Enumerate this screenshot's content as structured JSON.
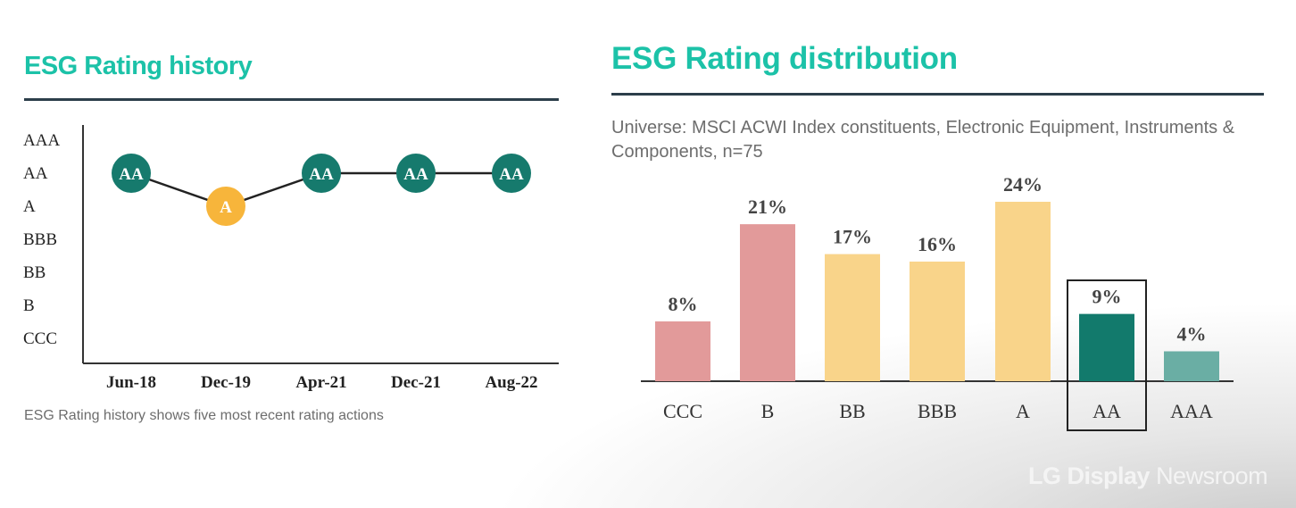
{
  "watermark": {
    "brand": "LG Display",
    "suffix": "Newsroom"
  },
  "chart_data": [
    {
      "type": "line",
      "title": "ESG Rating history",
      "note": "ESG Rating history shows five most recent rating actions",
      "y_categories": [
        "AAA",
        "AA",
        "A",
        "BBB",
        "BB",
        "B",
        "CCC"
      ],
      "x": [
        "Jun-18",
        "Dec-19",
        "Apr-21",
        "Dec-21",
        "Aug-22"
      ],
      "values": [
        "AA",
        "A",
        "AA",
        "AA",
        "AA"
      ],
      "colors": {
        "leader": "#167a6d",
        "average": "#f7b53b"
      }
    },
    {
      "type": "bar",
      "title": "ESG Rating distribution",
      "subtitle": "Universe: MSCI ACWI Index constituents, Electronic Equipment, Instruments & Components, n=75",
      "categories": [
        "CCC",
        "B",
        "BB",
        "BBB",
        "A",
        "AA",
        "AAA"
      ],
      "values": [
        8,
        21,
        17,
        16,
        24,
        9,
        4
      ],
      "labels": [
        "8%",
        "21%",
        "17%",
        "16%",
        "24%",
        "9%",
        "4%"
      ],
      "colors": [
        "#e29a9a",
        "#e29a9a",
        "#f9d48a",
        "#f9d48a",
        "#f9d48a",
        "#127a6c",
        "#6aaea4"
      ],
      "highlight": "AA",
      "ylim": [
        0,
        25
      ]
    }
  ]
}
